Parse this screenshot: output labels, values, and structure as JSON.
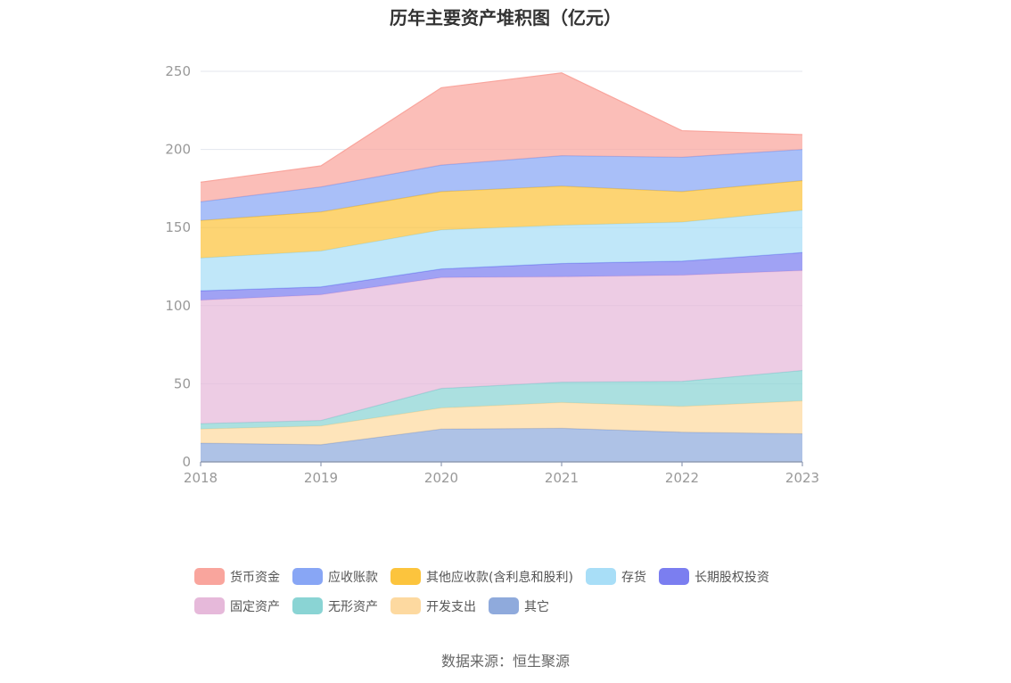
{
  "source_label": "数据来源：恒生聚源",
  "chart_data": {
    "type": "area",
    "stacked": true,
    "title": "历年主要资产堆积图（亿元）",
    "xlabel": "",
    "ylabel": "",
    "categories": [
      "2018",
      "2019",
      "2020",
      "2021",
      "2022",
      "2023"
    ],
    "ylim": [
      0,
      250
    ],
    "yticks": [
      0,
      50,
      100,
      150,
      200,
      250
    ],
    "grid": true,
    "legend_position": "bottom",
    "series": [
      {
        "name": "其它",
        "color": "#8faadc",
        "values": [
          12,
          11,
          21,
          21.5,
          19,
          18
        ]
      },
      {
        "name": "开发支出",
        "color": "#fdd9a0",
        "values": [
          9,
          12,
          13.5,
          16.5,
          16.5,
          21
        ]
      },
      {
        "name": "无形资产",
        "color": "#8ad4d4",
        "values": [
          3.5,
          3.5,
          12.5,
          13,
          16,
          19.5
        ]
      },
      {
        "name": "固定资产",
        "color": "#e6b9da",
        "values": [
          79,
          80.5,
          71,
          67.5,
          68,
          64
        ]
      },
      {
        "name": "长期股权投资",
        "color": "#7b7ef0",
        "values": [
          6,
          5,
          5.5,
          8.5,
          9,
          11.5
        ]
      },
      {
        "name": "存货",
        "color": "#a8def7",
        "values": [
          21,
          23,
          25,
          24.5,
          25,
          27
        ]
      },
      {
        "name": "其他应收款(含利息和股利)",
        "color": "#fcc43d",
        "values": [
          24,
          25,
          24.5,
          25,
          19.5,
          19
        ]
      },
      {
        "name": "应收账款",
        "color": "#88a6f5",
        "values": [
          12,
          16,
          17,
          19.5,
          22,
          20
        ]
      },
      {
        "name": "货币资金",
        "color": "#f9a59d",
        "values": [
          12.5,
          13.5,
          49.5,
          53,
          17,
          9.5
        ]
      }
    ],
    "legend_order": [
      "货币资金",
      "应收账款",
      "其他应收款(含利息和股利)",
      "存货",
      "长期股权投资",
      "固定资产",
      "无形资产",
      "开发支出",
      "其它"
    ]
  }
}
